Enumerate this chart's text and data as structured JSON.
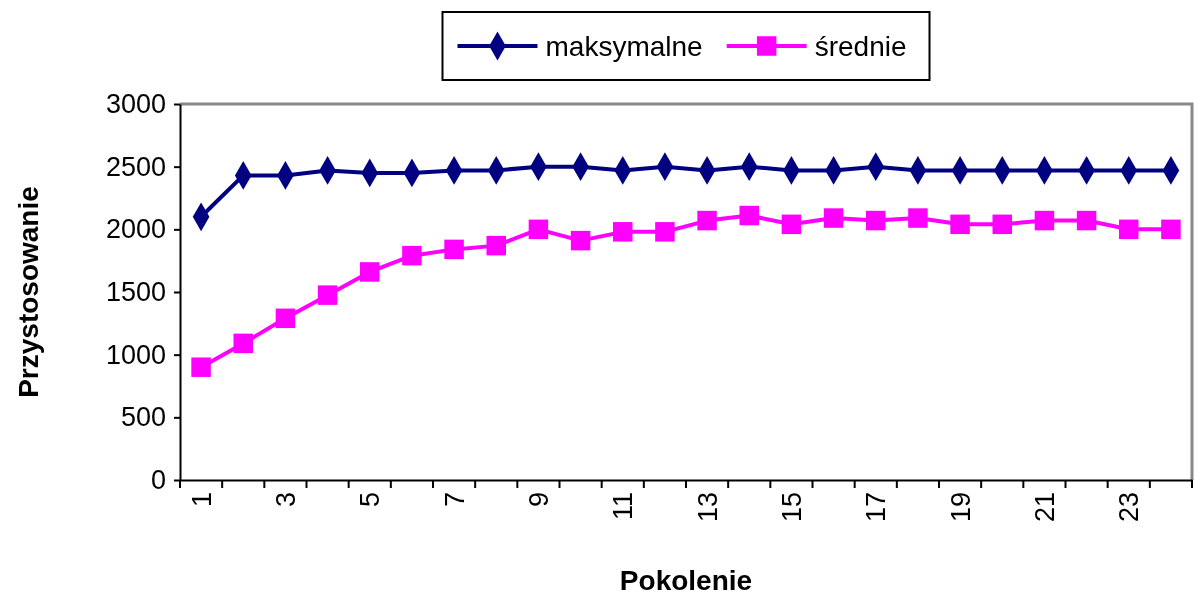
{
  "chart_data": {
    "type": "line",
    "xlabel": "Pokolenie",
    "ylabel": "Przystosowanie",
    "categories": [
      "1",
      null,
      "3",
      null,
      "5",
      null,
      "7",
      null,
      "9",
      null,
      "11",
      null,
      "13",
      null,
      "15",
      null,
      "17",
      null,
      "19",
      null,
      "21",
      null,
      "23",
      null
    ],
    "series": [
      {
        "name": "maksymalne",
        "color": "#000080",
        "marker": "diamond",
        "values": [
          2100,
          2430,
          2430,
          2470,
          2450,
          2450,
          2470,
          2470,
          2500,
          2500,
          2470,
          2500,
          2470,
          2500,
          2470,
          2470,
          2500,
          2470,
          2470,
          2470,
          2470,
          2470,
          2470,
          2470
        ]
      },
      {
        "name": "średnie",
        "color": "#ff00ff",
        "marker": "square",
        "values": [
          900,
          1090,
          1290,
          1475,
          1660,
          1790,
          1840,
          1870,
          2000,
          1910,
          1980,
          1980,
          2070,
          2110,
          2040,
          2090,
          2070,
          2090,
          2040,
          2040,
          2070,
          2070,
          2000,
          2000
        ]
      }
    ],
    "ylim": [
      0,
      3000
    ],
    "yticks": [
      0,
      500,
      1000,
      1500,
      2000,
      2500,
      3000
    ],
    "grid": false,
    "legend": "top"
  }
}
